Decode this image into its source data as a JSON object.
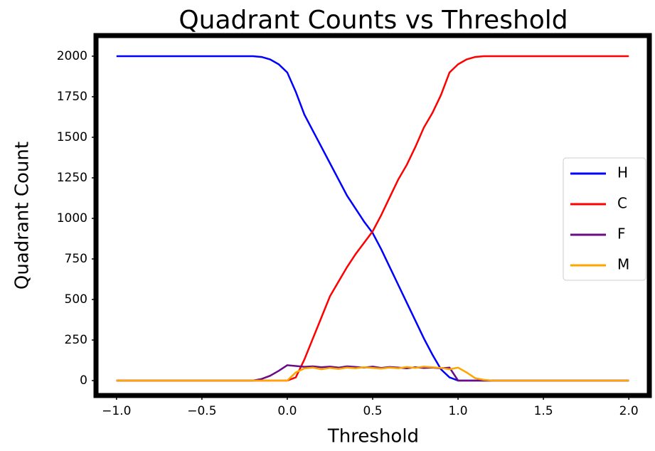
{
  "chart_data": {
    "type": "line",
    "title": "Quadrant Counts vs Threshold",
    "x_label": "Threshold",
    "y_label": "Quadrant Count",
    "x": [
      -1.0,
      -0.95,
      -0.9,
      -0.85,
      -0.8,
      -0.75,
      -0.7,
      -0.65,
      -0.6,
      -0.55,
      -0.5,
      -0.45,
      -0.4,
      -0.35,
      -0.3,
      -0.25,
      -0.2,
      -0.15,
      -0.1,
      -0.05,
      0.0,
      0.05,
      0.1,
      0.15,
      0.2,
      0.25,
      0.3,
      0.35,
      0.4,
      0.45,
      0.5,
      0.55,
      0.6,
      0.65,
      0.7,
      0.75,
      0.8,
      0.85,
      0.9,
      0.95,
      1.0,
      1.05,
      1.1,
      1.15,
      1.2,
      1.25,
      1.3,
      1.35,
      1.4,
      1.45,
      1.5,
      1.55,
      1.6,
      1.65,
      1.7,
      1.75,
      1.8,
      1.85,
      1.9,
      1.95,
      2.0
    ],
    "series": [
      {
        "name": "H",
        "color": "#0000ff",
        "values": [
          2000,
          2000,
          2000,
          2000,
          2000,
          2000,
          2000,
          2000,
          2000,
          2000,
          2000,
          2000,
          2000,
          2000,
          2000,
          2000,
          2000,
          1995,
          1980,
          1950,
          1900,
          1780,
          1640,
          1540,
          1440,
          1340,
          1240,
          1140,
          1060,
          980,
          910,
          810,
          700,
          590,
          480,
          370,
          260,
          160,
          70,
          20,
          0,
          0,
          0,
          0,
          0,
          0,
          0,
          0,
          0,
          0,
          0,
          0,
          0,
          0,
          0,
          0,
          0,
          0,
          0,
          0,
          0
        ]
      },
      {
        "name": "C",
        "color": "#ff0000",
        "values": [
          0,
          0,
          0,
          0,
          0,
          0,
          0,
          0,
          0,
          0,
          0,
          0,
          0,
          0,
          0,
          0,
          0,
          0,
          0,
          0,
          0,
          20,
          130,
          260,
          390,
          520,
          610,
          700,
          780,
          850,
          920,
          1020,
          1130,
          1240,
          1330,
          1440,
          1560,
          1650,
          1760,
          1900,
          1950,
          1980,
          1995,
          2000,
          2000,
          2000,
          2000,
          2000,
          2000,
          2000,
          2000,
          2000,
          2000,
          2000,
          2000,
          2000,
          2000,
          2000,
          2000,
          2000,
          2000
        ]
      },
      {
        "name": "F",
        "color": "#6a0d83",
        "values": [
          0,
          0,
          0,
          0,
          0,
          0,
          0,
          0,
          0,
          0,
          0,
          0,
          0,
          0,
          0,
          0,
          0,
          10,
          30,
          60,
          95,
          90,
          85,
          88,
          82,
          86,
          80,
          88,
          84,
          80,
          86,
          78,
          84,
          80,
          76,
          82,
          78,
          80,
          76,
          80,
          0,
          0,
          0,
          0,
          0,
          0,
          0,
          0,
          0,
          0,
          0,
          0,
          0,
          0,
          0,
          0,
          0,
          0,
          0,
          0,
          0
        ]
      },
      {
        "name": "M",
        "color": "#ffa500",
        "values": [
          0,
          0,
          0,
          0,
          0,
          0,
          0,
          0,
          0,
          0,
          0,
          0,
          0,
          0,
          0,
          0,
          0,
          0,
          0,
          0,
          0,
          50,
          75,
          80,
          70,
          78,
          72,
          80,
          76,
          82,
          78,
          74,
          80,
          76,
          84,
          78,
          86,
          82,
          78,
          70,
          80,
          50,
          15,
          5,
          0,
          0,
          0,
          0,
          0,
          0,
          0,
          0,
          0,
          0,
          0,
          0,
          0,
          0,
          0,
          0,
          0
        ]
      }
    ],
    "xlim": [
      -1.12,
      2.12
    ],
    "ylim": [
      -92,
      2127
    ],
    "xticks": [
      {
        "value": -1,
        "label": "−1.0"
      },
      {
        "value": -0.5,
        "label": "−0.5"
      },
      {
        "value": 0,
        "label": "0.0"
      },
      {
        "value": 0.5,
        "label": "0.5"
      },
      {
        "value": 1,
        "label": "1.0"
      },
      {
        "value": 1.5,
        "label": "1.5"
      },
      {
        "value": 2,
        "label": "2.0"
      }
    ],
    "yticks": [
      0,
      250,
      500,
      750,
      1000,
      1250,
      1500,
      1750,
      2000
    ],
    "legend": "right"
  }
}
